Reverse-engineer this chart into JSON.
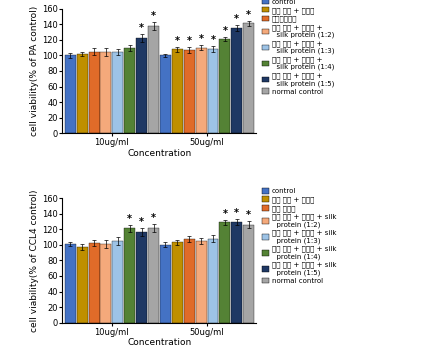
{
  "top_chart": {
    "ylabel": "cell viability(% of PA control)",
    "xlabel": "Concentration",
    "ylim": [
      0,
      160
    ],
    "yticks": [
      0,
      20,
      40,
      60,
      80,
      100,
      120,
      140,
      160
    ],
    "groups": [
      "10ug/ml",
      "50ug/ml"
    ],
    "values": [
      [
        100,
        102,
        105,
        104,
        104,
        110,
        122,
        138
      ],
      [
        100,
        108,
        107,
        110,
        108,
        121,
        135,
        141
      ]
    ],
    "errors": [
      [
        3,
        3,
        5,
        5,
        4,
        4,
        5,
        5
      ],
      [
        2,
        3,
        4,
        3,
        4,
        3,
        4,
        3
      ]
    ],
    "star": [
      [
        false,
        false,
        false,
        false,
        false,
        false,
        true,
        true
      ],
      [
        false,
        true,
        true,
        true,
        true,
        true,
        true,
        true
      ]
    ],
    "colors": [
      "#4472C4",
      "#BF8F00",
      "#E06B29",
      "#F4A97B",
      "#9DC3E6",
      "#548235",
      "#1F3864",
      "#A5A5A5"
    ],
    "legend_labels": [
      "control",
      "대성 열수 + 구연산",
      "실크아미노산",
      "대성 열수 + 구연산 +\n  silk protein (1:2)",
      "대성 열수 + 구연산 +\n  silk protein (1:3)",
      "대성 열수 + 구연산 +\n  silk protein (1:4)",
      "대성 열수 + 구연산 +\n  silk protein (1:5)",
      "normal control"
    ]
  },
  "bottom_chart": {
    "ylabel": "cell viability(% of CCL4 control)",
    "xlabel": "Concentration",
    "ylim": [
      0,
      160
    ],
    "yticks": [
      0,
      20,
      40,
      60,
      80,
      100,
      120,
      140,
      160
    ],
    "groups": [
      "10ug/ml",
      "50ug/ml"
    ],
    "values": [
      [
        101,
        97,
        102,
        101,
        105,
        121,
        116,
        122
      ],
      [
        100,
        103,
        107,
        105,
        108,
        129,
        129,
        126
      ]
    ],
    "errors": [
      [
        3,
        4,
        4,
        5,
        5,
        4,
        5,
        5
      ],
      [
        3,
        3,
        4,
        4,
        4,
        3,
        4,
        4
      ]
    ],
    "star": [
      [
        false,
        false,
        false,
        false,
        false,
        true,
        true,
        true
      ],
      [
        false,
        false,
        false,
        false,
        false,
        true,
        true,
        true
      ]
    ],
    "colors": [
      "#4472C4",
      "#BF8F00",
      "#E06B29",
      "#F4A97B",
      "#9DC3E6",
      "#548235",
      "#1F3864",
      "#A5A5A5"
    ],
    "legend_labels": [
      "control",
      "대성 열수 + 구연산",
      "실크 단백질",
      "대성 열수 + 구연산 + silk\n  protein (1:2)",
      "대성 열수 + 구연산 + silk\n  protein (1:3)",
      "대성 열수 + 구연산 + silk\n  protein (1:4)",
      "대성 열수 + 구연산 + silk\n  protein (1:5)",
      "normal control"
    ]
  },
  "bar_width": 0.065,
  "group_centers": [
    0.28,
    0.8
  ],
  "legend_fontsize": 5.0,
  "tick_fontsize": 6,
  "label_fontsize": 6.5,
  "star_fontsize": 7
}
